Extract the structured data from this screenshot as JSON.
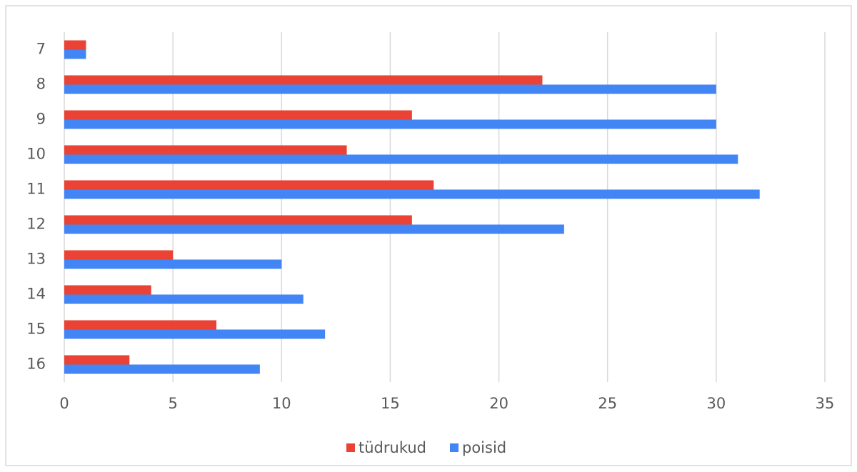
{
  "chart_data": {
    "type": "bar",
    "orientation": "horizontal",
    "categories": [
      "7",
      "8",
      "9",
      "10",
      "11",
      "12",
      "13",
      "14",
      "15",
      "16"
    ],
    "series": [
      {
        "name": "tüdrukud",
        "color": "#ea4335",
        "values": [
          1,
          22,
          16,
          13,
          17,
          16,
          5,
          4,
          7,
          3
        ]
      },
      {
        "name": "poisid",
        "color": "#4285f4",
        "values": [
          1,
          30,
          30,
          31,
          32,
          23,
          10,
          11,
          12,
          9
        ]
      }
    ],
    "xlim": [
      0,
      35
    ],
    "xticks": [
      0,
      5,
      10,
      15,
      20,
      25,
      30,
      35
    ],
    "grid": true,
    "legend": "bottom"
  }
}
